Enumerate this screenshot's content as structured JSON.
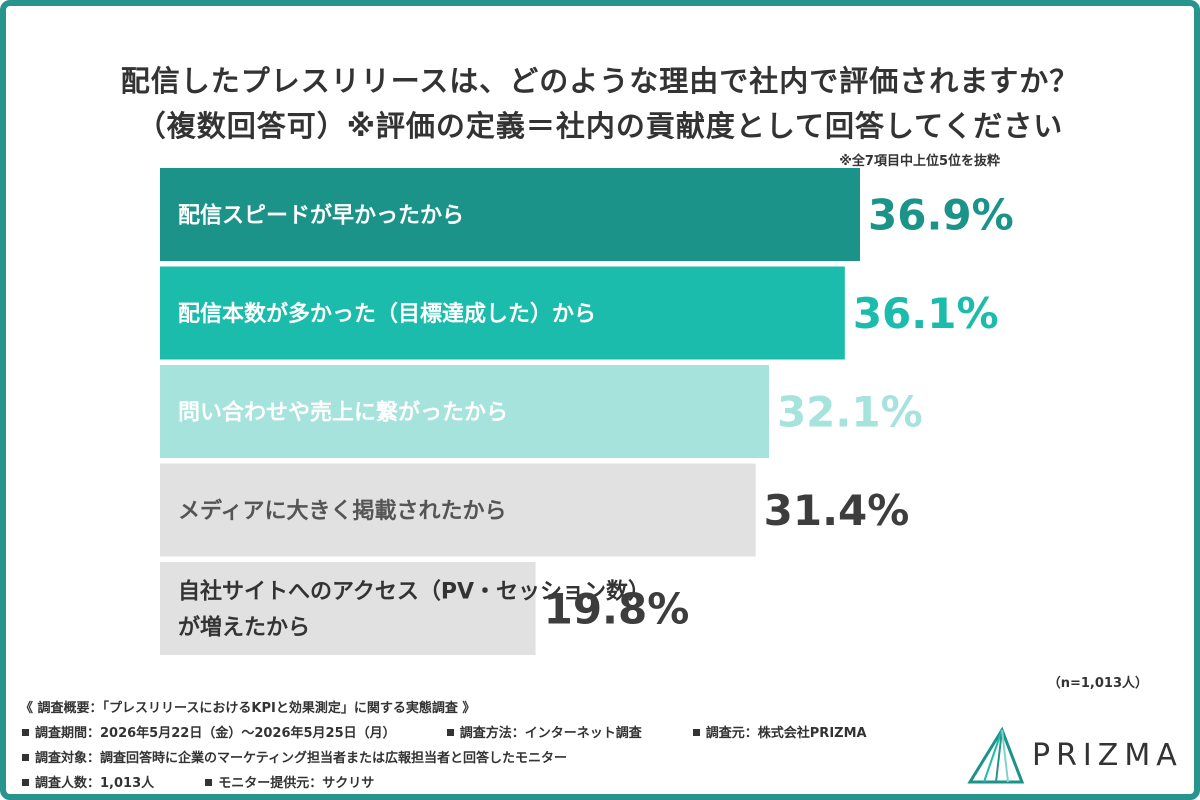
{
  "title_line1": "配信したプレスリリースは、どのような理由で社内で評価されますか？",
  "title_line2": "（複数回答可）※評価の定義＝社内の貢献度として回答してください",
  "note_top": "※全7項目中上位5位を抜粋",
  "chart_data": {
    "type": "bar",
    "orientation": "horizontal",
    "categories": [
      [
        "配信スピードが早かったから"
      ],
      [
        "配信本数が多かった（目標達成した）から"
      ],
      [
        "問い合わせや売上に繋がったから"
      ],
      [
        "メディアに大きく掲載されたから"
      ],
      [
        "自社サイトへのアクセス（PV・セッション数）",
        "が増えたから"
      ]
    ],
    "values": [
      36.9,
      36.1,
      32.1,
      31.4,
      19.8
    ],
    "value_labels": [
      "36.9%",
      "36.1%",
      "32.1%",
      "31.4%",
      "19.8%"
    ],
    "bar_colors": [
      "#1b9389",
      "#1cbcad",
      "#a6e3dd",
      "#e1e1e1",
      "#e1e1e1"
    ],
    "label_colors": [
      "#ffffff",
      "#ffffff",
      "#ffffff",
      "#555555",
      "#333333"
    ],
    "value_colors": [
      "#1b9389",
      "#1cbcad",
      "#a6e3dd",
      "#3d3d3d",
      "#3d3d3d"
    ],
    "xlim": [
      0,
      36.9
    ]
  },
  "sample_note": "（n=1,013人）",
  "survey": {
    "line1": "《 調査概要：「プレスリリースにおけるKPIと効果測定」に関する実態調査 》",
    "period": "調査期間：2026年5月22日（金）〜2026年5月25日（月）",
    "method": "調査方法：インターネット調査",
    "source": "調査元：株式会社PRIZMA",
    "target": "調査対象：調査回答時に企業のマーケティング担当者または広報担当者と回答したモニター",
    "count": "調査人数：1,013人",
    "provider": "モニター提供元：サクリサ"
  },
  "logo_text": "PRIZMA",
  "colors": {
    "frame": "#27958d",
    "text": "#333333"
  }
}
